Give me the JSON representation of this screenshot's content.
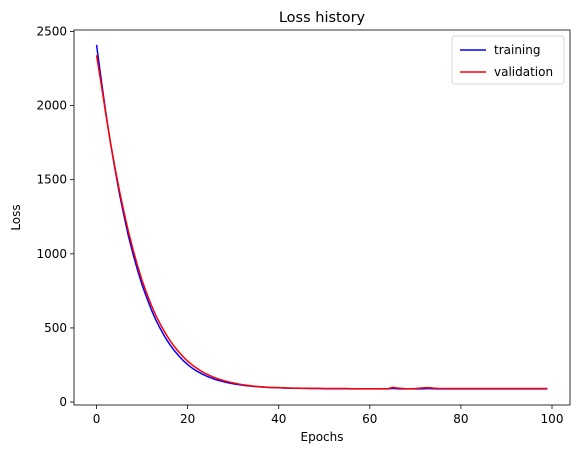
{
  "chart_data": {
    "type": "line",
    "title": "Loss history",
    "xlabel": "Epochs",
    "ylabel": "Loss",
    "xlim": [
      -4.95,
      103.95
    ],
    "ylim": [
      -20,
      2510
    ],
    "xticks": [
      0,
      20,
      40,
      60,
      80,
      100
    ],
    "yticks": [
      0,
      500,
      1000,
      1500,
      2000,
      2500
    ],
    "grid": false,
    "legend_position": "top-right",
    "series": [
      {
        "name": "training",
        "color": "#0000ff",
        "x": [
          0,
          1,
          2,
          3,
          4,
          5,
          6,
          7,
          8,
          9,
          10,
          11,
          12,
          13,
          14,
          15,
          16,
          17,
          18,
          19,
          20,
          21,
          22,
          23,
          24,
          25,
          26,
          27,
          28,
          29,
          30,
          31,
          32,
          33,
          34,
          35,
          36,
          37,
          38,
          39,
          40,
          41,
          42,
          43,
          44,
          45,
          46,
          47,
          48,
          49,
          50,
          51,
          52,
          53,
          54,
          55,
          56,
          57,
          58,
          59,
          60,
          61,
          62,
          63,
          64,
          65,
          66,
          67,
          68,
          69,
          70,
          71,
          72,
          73,
          74,
          75,
          76,
          77,
          78,
          79,
          80,
          81,
          82,
          83,
          84,
          85,
          86,
          87,
          88,
          89,
          90,
          91,
          92,
          93,
          94,
          95,
          96,
          97,
          98,
          99
        ],
        "y": [
          2410,
          2180,
          1960,
          1760,
          1580,
          1410,
          1260,
          1120,
          1000,
          890,
          790,
          705,
          625,
          555,
          495,
          440,
          392,
          350,
          313,
          281,
          253,
          229,
          209,
          192,
          177,
          164,
          153,
          144,
          136,
          129,
          123,
          118,
          114,
          110,
          107,
          104,
          102,
          100,
          98,
          97,
          96,
          95,
          94,
          93,
          93,
          92,
          92,
          91,
          91,
          91,
          90,
          90,
          90,
          90,
          90,
          90,
          89,
          89,
          89,
          89,
          89,
          89,
          89,
          89,
          89,
          92,
          90,
          89,
          89,
          89,
          89,
          89,
          90,
          91,
          90,
          89,
          89,
          89,
          89,
          89,
          89,
          89,
          89,
          89,
          89,
          89,
          89,
          89,
          89,
          89,
          89,
          89,
          89,
          89,
          89,
          89,
          89,
          89,
          89,
          89
        ]
      },
      {
        "name": "validation",
        "color": "#ff0000",
        "x": [
          0,
          1,
          2,
          3,
          4,
          5,
          6,
          7,
          8,
          9,
          10,
          11,
          12,
          13,
          14,
          15,
          16,
          17,
          18,
          19,
          20,
          21,
          22,
          23,
          24,
          25,
          26,
          27,
          28,
          29,
          30,
          31,
          32,
          33,
          34,
          35,
          36,
          37,
          38,
          39,
          40,
          41,
          42,
          43,
          44,
          45,
          46,
          47,
          48,
          49,
          50,
          51,
          52,
          53,
          54,
          55,
          56,
          57,
          58,
          59,
          60,
          61,
          62,
          63,
          64,
          65,
          66,
          67,
          68,
          69,
          70,
          71,
          72,
          73,
          74,
          75,
          76,
          77,
          78,
          79,
          80,
          81,
          82,
          83,
          84,
          85,
          86,
          87,
          88,
          89,
          90,
          91,
          92,
          93,
          94,
          95,
          96,
          97,
          98,
          99
        ],
        "y": [
          2340,
          2150,
          1950,
          1760,
          1590,
          1430,
          1285,
          1150,
          1030,
          920,
          820,
          735,
          655,
          585,
          525,
          470,
          421,
          378,
          340,
          306,
          276,
          250,
          228,
          208,
          191,
          177,
          164,
          153,
          144,
          136,
          129,
          123,
          117,
          113,
          109,
          106,
          103,
          101,
          99,
          98,
          97,
          96,
          95,
          94,
          94,
          93,
          93,
          92,
          92,
          92,
          91,
          91,
          91,
          91,
          91,
          91,
          90,
          90,
          90,
          90,
          90,
          90,
          90,
          90,
          90,
          99,
          95,
          92,
          90,
          90,
          91,
          94,
          96,
          97,
          94,
          92,
          91,
          91,
          91,
          91,
          91,
          91,
          91,
          91,
          91,
          91,
          91,
          91,
          91,
          91,
          91,
          91,
          91,
          91,
          91,
          91,
          91,
          91,
          91,
          91
        ]
      }
    ]
  }
}
